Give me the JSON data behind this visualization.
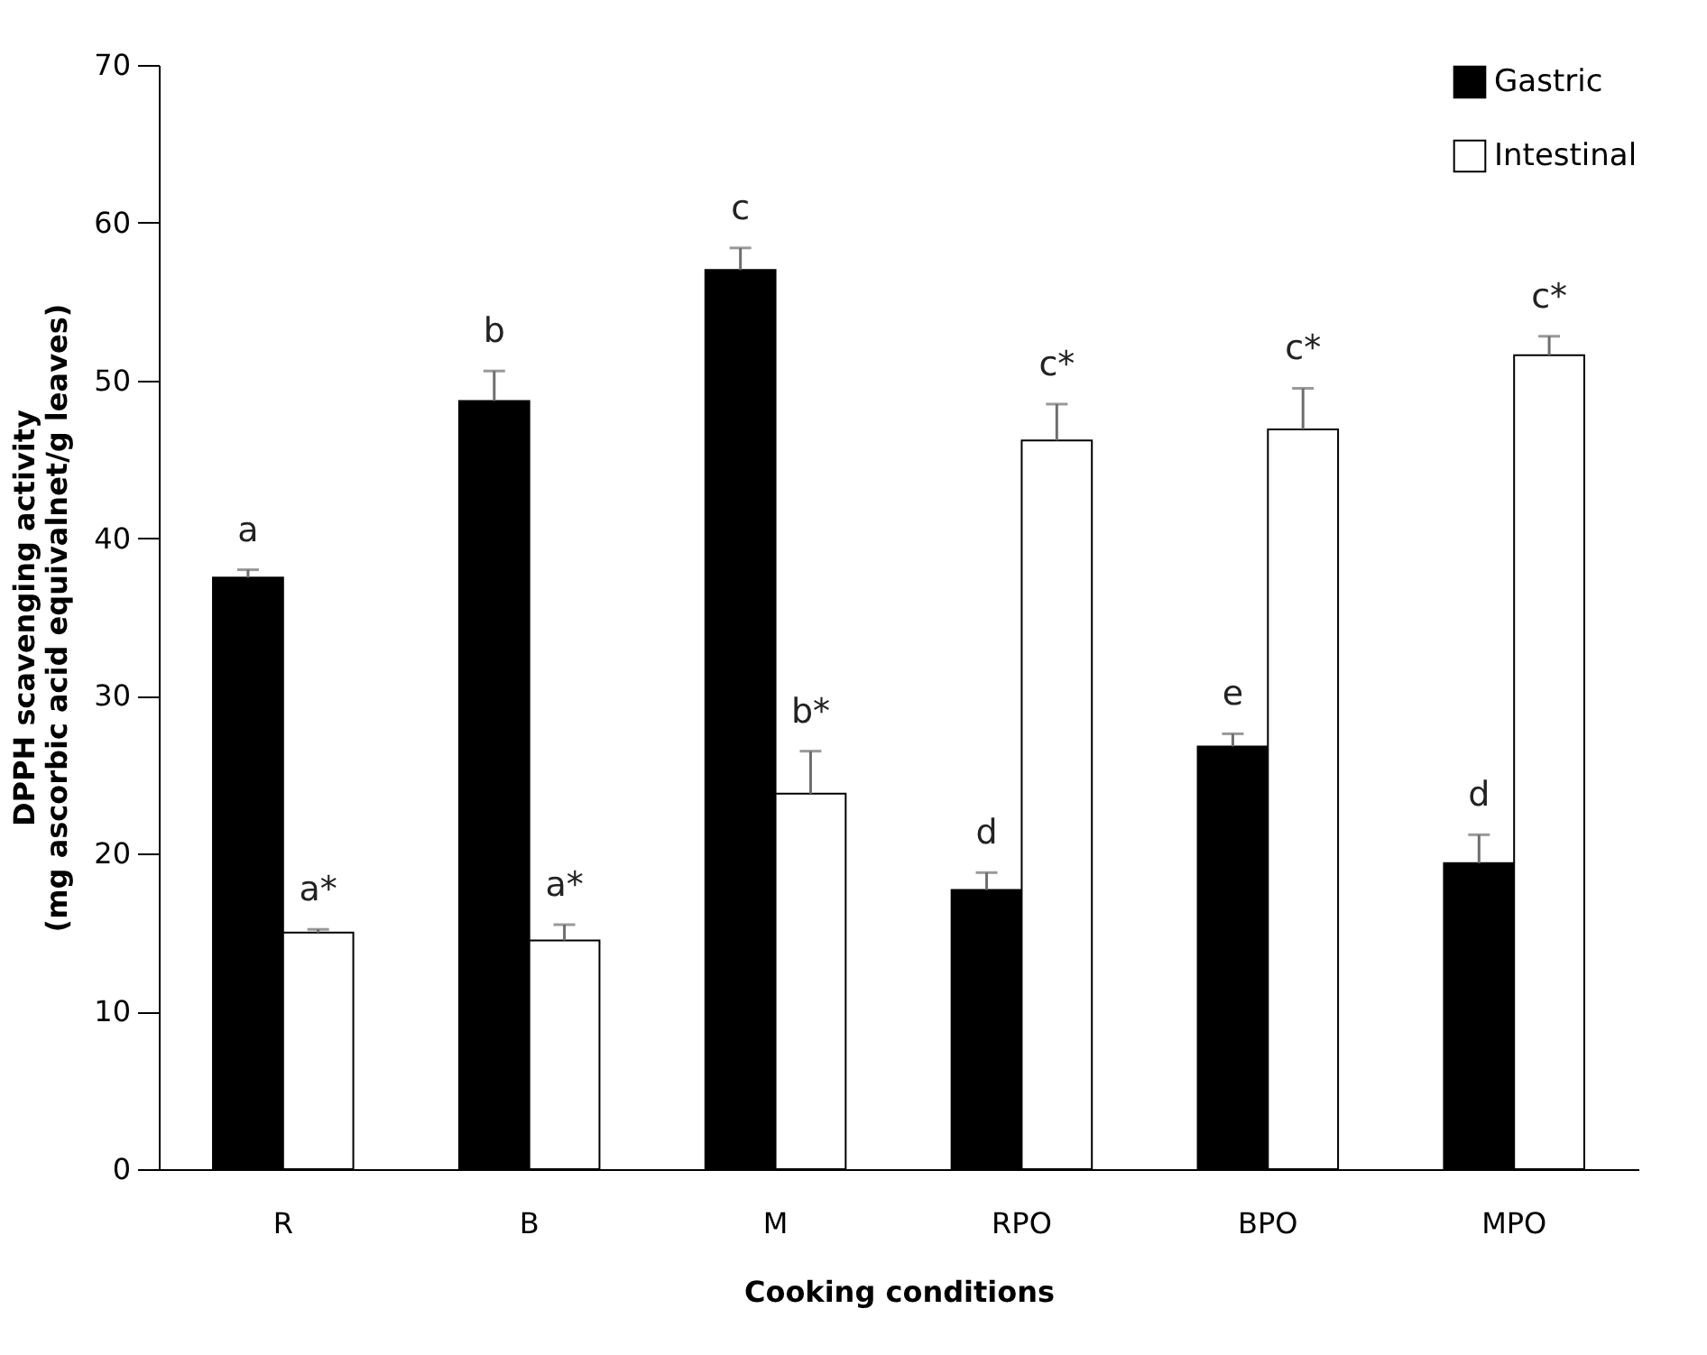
{
  "chart_data": {
    "type": "bar",
    "xlabel": "Cooking conditions",
    "ylabel": "DPPH scavenging activity\n(mg ascorbic acid equivalnet/g leaves)",
    "categories": [
      "R",
      "B",
      "M",
      "RPO",
      "BPO",
      "MPO"
    ],
    "series": [
      {
        "name": "Gastric",
        "color": "#000000",
        "values": [
          37.5,
          48.7,
          57.0,
          17.7,
          26.8,
          19.4
        ],
        "errors": [
          [
            37.5,
            38.0
          ],
          [
            48.7,
            50.6
          ],
          [
            57.0,
            58.4
          ],
          [
            17.7,
            18.8
          ],
          [
            26.8,
            27.6
          ],
          [
            19.4,
            21.2
          ]
        ],
        "value_labels": [
          "a",
          "b",
          "c",
          "d",
          "e",
          "d"
        ]
      },
      {
        "name": "Intestinal",
        "color": "#ffffff",
        "values": [
          15.0,
          14.5,
          23.8,
          46.2,
          46.9,
          51.6
        ],
        "errors": [
          [
            15.0,
            15.2
          ],
          [
            14.5,
            15.5
          ],
          [
            23.8,
            26.5
          ],
          [
            46.2,
            48.5
          ],
          [
            46.9,
            49.5
          ],
          [
            51.6,
            52.8
          ]
        ],
        "value_labels": [
          "a*",
          "a*",
          "b*",
          "c*",
          "c*",
          "c*"
        ]
      }
    ],
    "ylim": [
      0,
      70
    ],
    "yticks": [
      0,
      10,
      20,
      30,
      40,
      50,
      60,
      70
    ],
    "grid": false,
    "legend": "top right"
  }
}
